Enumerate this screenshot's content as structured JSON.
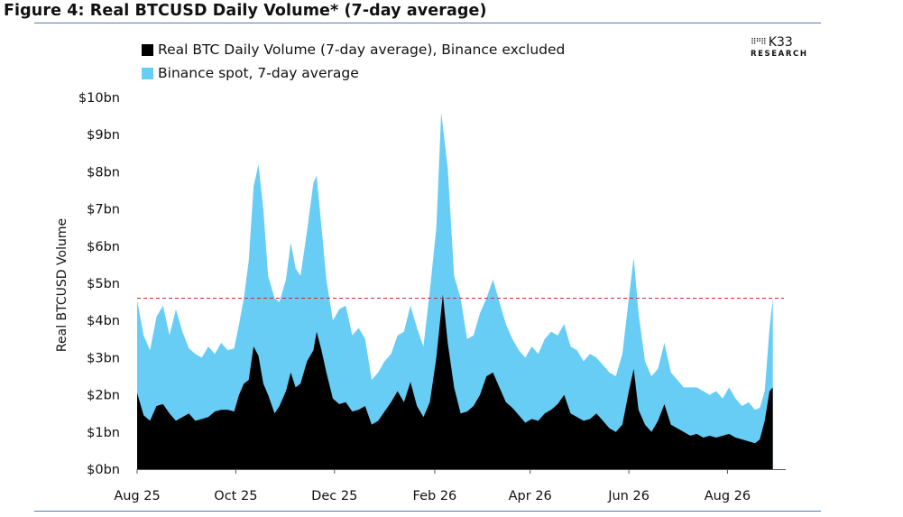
{
  "figure": {
    "title": "Figure 4: Real BTCUSD Daily Volume* (7-day average)"
  },
  "logo": {
    "mark": "K33",
    "sub": "RESEARCH"
  },
  "chart_data": {
    "type": "area",
    "title": "Figure 4: Real BTCUSD Daily Volume* (7-day average)",
    "ylabel": "Real BTCUSD Volume",
    "ylim": [
      0,
      10
    ],
    "y_unit": "bn USD",
    "y_ticks": [
      0,
      1,
      2,
      3,
      4,
      5,
      6,
      7,
      8,
      9,
      10
    ],
    "y_tick_labels": [
      "$0bn",
      "$1bn",
      "$2bn",
      "$3bn",
      "$4bn",
      "$5bn",
      "$6bn",
      "$7bn",
      "$8bn",
      "$9bn",
      "$10bn"
    ],
    "x_range": [
      "2025-08-01",
      "2026-09-06"
    ],
    "x_ticks": [
      "2025-08-01",
      "2025-10-01",
      "2025-12-01",
      "2026-02-01",
      "2026-04-01",
      "2026-06-01",
      "2026-08-01"
    ],
    "x_tick_labels": [
      "Aug 25",
      "Oct 25",
      "Dec 25",
      "Feb 26",
      "Apr 26",
      "Jun 26",
      "Aug 26"
    ],
    "stacked": true,
    "legend_position": "top-left",
    "reference_line": {
      "value": 4.6,
      "style": "dashed",
      "color": "#cc2b2b"
    },
    "series": [
      {
        "name": "Real BTC Daily Volume (7-day average), Binance excluded",
        "color": "#000000",
        "points": [
          [
            "2025-08-01",
            2.05
          ],
          [
            "2025-08-05",
            1.45
          ],
          [
            "2025-08-09",
            1.3
          ],
          [
            "2025-08-13",
            1.7
          ],
          [
            "2025-08-17",
            1.75
          ],
          [
            "2025-08-21",
            1.5
          ],
          [
            "2025-08-25",
            1.3
          ],
          [
            "2025-08-29",
            1.4
          ],
          [
            "2025-09-02",
            1.5
          ],
          [
            "2025-09-06",
            1.3
          ],
          [
            "2025-09-10",
            1.35
          ],
          [
            "2025-09-14",
            1.4
          ],
          [
            "2025-09-18",
            1.55
          ],
          [
            "2025-09-22",
            1.6
          ],
          [
            "2025-09-26",
            1.6
          ],
          [
            "2025-09-30",
            1.55
          ],
          [
            "2025-10-03",
            2.0
          ],
          [
            "2025-10-06",
            2.3
          ],
          [
            "2025-10-09",
            2.4
          ],
          [
            "2025-10-12",
            3.3
          ],
          [
            "2025-10-15",
            3.05
          ],
          [
            "2025-10-18",
            2.3
          ],
          [
            "2025-10-21",
            2.0
          ],
          [
            "2025-10-25",
            1.5
          ],
          [
            "2025-10-28",
            1.7
          ],
          [
            "2025-11-01",
            2.1
          ],
          [
            "2025-11-04",
            2.6
          ],
          [
            "2025-11-07",
            2.2
          ],
          [
            "2025-11-10",
            2.3
          ],
          [
            "2025-11-14",
            2.9
          ],
          [
            "2025-11-18",
            3.2
          ],
          [
            "2025-11-20",
            3.7
          ],
          [
            "2025-11-23",
            3.2
          ],
          [
            "2025-11-26",
            2.6
          ],
          [
            "2025-11-30",
            1.9
          ],
          [
            "2025-12-04",
            1.75
          ],
          [
            "2025-12-08",
            1.8
          ],
          [
            "2025-12-12",
            1.55
          ],
          [
            "2025-12-16",
            1.6
          ],
          [
            "2025-12-20",
            1.7
          ],
          [
            "2025-12-24",
            1.2
          ],
          [
            "2025-12-28",
            1.3
          ],
          [
            "2026-01-01",
            1.55
          ],
          [
            "2026-01-05",
            1.8
          ],
          [
            "2026-01-09",
            2.1
          ],
          [
            "2026-01-13",
            1.8
          ],
          [
            "2026-01-17",
            2.35
          ],
          [
            "2026-01-21",
            1.7
          ],
          [
            "2026-01-25",
            1.4
          ],
          [
            "2026-01-29",
            1.8
          ],
          [
            "2026-02-02",
            3.0
          ],
          [
            "2026-02-06",
            4.7
          ],
          [
            "2026-02-09",
            3.4
          ],
          [
            "2026-02-13",
            2.2
          ],
          [
            "2026-02-17",
            1.5
          ],
          [
            "2026-02-21",
            1.55
          ],
          [
            "2026-02-25",
            1.7
          ],
          [
            "2026-03-01",
            2.0
          ],
          [
            "2026-03-05",
            2.5
          ],
          [
            "2026-03-09",
            2.6
          ],
          [
            "2026-03-13",
            2.2
          ],
          [
            "2026-03-17",
            1.8
          ],
          [
            "2026-03-21",
            1.65
          ],
          [
            "2026-03-25",
            1.45
          ],
          [
            "2026-03-29",
            1.25
          ],
          [
            "2026-04-02",
            1.35
          ],
          [
            "2026-04-06",
            1.3
          ],
          [
            "2026-04-10",
            1.5
          ],
          [
            "2026-04-14",
            1.6
          ],
          [
            "2026-04-18",
            1.75
          ],
          [
            "2026-04-22",
            2.0
          ],
          [
            "2026-04-26",
            1.5
          ],
          [
            "2026-04-30",
            1.4
          ],
          [
            "2026-05-04",
            1.3
          ],
          [
            "2026-05-08",
            1.35
          ],
          [
            "2026-05-12",
            1.5
          ],
          [
            "2026-05-16",
            1.3
          ],
          [
            "2026-05-20",
            1.1
          ],
          [
            "2026-05-24",
            1.0
          ],
          [
            "2026-05-28",
            1.2
          ],
          [
            "2026-06-01",
            2.1
          ],
          [
            "2026-06-04",
            2.7
          ],
          [
            "2026-06-07",
            1.6
          ],
          [
            "2026-06-11",
            1.2
          ],
          [
            "2026-06-15",
            1.0
          ],
          [
            "2026-06-19",
            1.3
          ],
          [
            "2026-06-23",
            1.75
          ],
          [
            "2026-06-27",
            1.2
          ],
          [
            "2026-07-01",
            1.1
          ],
          [
            "2026-07-05",
            1.0
          ],
          [
            "2026-07-09",
            0.9
          ],
          [
            "2026-07-13",
            0.95
          ],
          [
            "2026-07-17",
            0.85
          ],
          [
            "2026-07-21",
            0.9
          ],
          [
            "2026-07-25",
            0.85
          ],
          [
            "2026-07-29",
            0.9
          ],
          [
            "2026-08-02",
            0.95
          ],
          [
            "2026-08-06",
            0.85
          ],
          [
            "2026-08-10",
            0.8
          ],
          [
            "2026-08-14",
            0.75
          ],
          [
            "2026-08-18",
            0.7
          ],
          [
            "2026-08-21",
            0.8
          ],
          [
            "2026-08-24",
            1.3
          ],
          [
            "2026-08-27",
            2.1
          ],
          [
            "2026-08-29",
            2.2
          ]
        ]
      },
      {
        "name": "Binance spot, 7-day average",
        "color": "#67cdf5",
        "points": [
          [
            "2025-08-01",
            4.55
          ],
          [
            "2025-08-05",
            3.6
          ],
          [
            "2025-08-09",
            3.2
          ],
          [
            "2025-08-13",
            4.1
          ],
          [
            "2025-08-17",
            4.4
          ],
          [
            "2025-08-21",
            3.6
          ],
          [
            "2025-08-25",
            4.3
          ],
          [
            "2025-08-29",
            3.7
          ],
          [
            "2025-09-02",
            3.25
          ],
          [
            "2025-09-06",
            3.1
          ],
          [
            "2025-09-10",
            3.0
          ],
          [
            "2025-09-14",
            3.3
          ],
          [
            "2025-09-18",
            3.1
          ],
          [
            "2025-09-22",
            3.4
          ],
          [
            "2025-09-26",
            3.2
          ],
          [
            "2025-09-30",
            3.25
          ],
          [
            "2025-10-03",
            3.9
          ],
          [
            "2025-10-06",
            4.6
          ],
          [
            "2025-10-09",
            5.6
          ],
          [
            "2025-10-12",
            7.6
          ],
          [
            "2025-10-15",
            8.2
          ],
          [
            "2025-10-18",
            7.0
          ],
          [
            "2025-10-21",
            5.2
          ],
          [
            "2025-10-25",
            4.6
          ],
          [
            "2025-10-28",
            4.5
          ],
          [
            "2025-11-01",
            5.1
          ],
          [
            "2025-11-04",
            6.1
          ],
          [
            "2025-11-07",
            5.4
          ],
          [
            "2025-11-10",
            5.2
          ],
          [
            "2025-11-14",
            6.4
          ],
          [
            "2025-11-18",
            7.7
          ],
          [
            "2025-11-20",
            7.9
          ],
          [
            "2025-11-23",
            6.5
          ],
          [
            "2025-11-26",
            5.1
          ],
          [
            "2025-11-30",
            4.0
          ],
          [
            "2025-12-04",
            4.3
          ],
          [
            "2025-12-08",
            4.4
          ],
          [
            "2025-12-12",
            3.6
          ],
          [
            "2025-12-16",
            3.8
          ],
          [
            "2025-12-20",
            3.5
          ],
          [
            "2025-12-24",
            2.4
          ],
          [
            "2025-12-28",
            2.6
          ],
          [
            "2026-01-01",
            2.9
          ],
          [
            "2026-01-05",
            3.1
          ],
          [
            "2026-01-09",
            3.6
          ],
          [
            "2026-01-13",
            3.7
          ],
          [
            "2026-01-17",
            4.4
          ],
          [
            "2026-01-21",
            3.8
          ],
          [
            "2026-01-25",
            3.3
          ],
          [
            "2026-01-29",
            4.8
          ],
          [
            "2026-02-02",
            6.5
          ],
          [
            "2026-02-05",
            9.6
          ],
          [
            "2026-02-09",
            8.1
          ],
          [
            "2026-02-13",
            5.2
          ],
          [
            "2026-02-17",
            4.6
          ],
          [
            "2026-02-21",
            3.5
          ],
          [
            "2026-02-25",
            3.6
          ],
          [
            "2026-03-01",
            4.2
          ],
          [
            "2026-03-05",
            4.6
          ],
          [
            "2026-03-09",
            5.1
          ],
          [
            "2026-03-13",
            4.5
          ],
          [
            "2026-03-17",
            3.9
          ],
          [
            "2026-03-21",
            3.5
          ],
          [
            "2026-03-25",
            3.2
          ],
          [
            "2026-03-29",
            3.0
          ],
          [
            "2026-04-02",
            3.3
          ],
          [
            "2026-04-06",
            3.1
          ],
          [
            "2026-04-10",
            3.5
          ],
          [
            "2026-04-14",
            3.7
          ],
          [
            "2026-04-18",
            3.6
          ],
          [
            "2026-04-22",
            3.9
          ],
          [
            "2026-04-26",
            3.3
          ],
          [
            "2026-04-30",
            3.2
          ],
          [
            "2026-05-04",
            2.9
          ],
          [
            "2026-05-08",
            3.1
          ],
          [
            "2026-05-12",
            3.0
          ],
          [
            "2026-05-16",
            2.8
          ],
          [
            "2026-05-20",
            2.6
          ],
          [
            "2026-05-24",
            2.5
          ],
          [
            "2026-05-28",
            3.1
          ],
          [
            "2026-06-01",
            4.6
          ],
          [
            "2026-06-04",
            5.7
          ],
          [
            "2026-06-07",
            4.2
          ],
          [
            "2026-06-11",
            2.9
          ],
          [
            "2026-06-15",
            2.5
          ],
          [
            "2026-06-19",
            2.7
          ],
          [
            "2026-06-23",
            3.4
          ],
          [
            "2026-06-27",
            2.6
          ],
          [
            "2026-07-01",
            2.4
          ],
          [
            "2026-07-05",
            2.2
          ],
          [
            "2026-07-09",
            2.2
          ],
          [
            "2026-07-13",
            2.2
          ],
          [
            "2026-07-17",
            2.1
          ],
          [
            "2026-07-21",
            2.0
          ],
          [
            "2026-07-25",
            2.1
          ],
          [
            "2026-07-29",
            1.9
          ],
          [
            "2026-08-02",
            2.2
          ],
          [
            "2026-08-06",
            1.9
          ],
          [
            "2026-08-10",
            1.7
          ],
          [
            "2026-08-14",
            1.8
          ],
          [
            "2026-08-18",
            1.6
          ],
          [
            "2026-08-21",
            1.65
          ],
          [
            "2026-08-24",
            2.1
          ],
          [
            "2026-08-27",
            3.8
          ],
          [
            "2026-08-29",
            4.6
          ]
        ]
      }
    ]
  }
}
